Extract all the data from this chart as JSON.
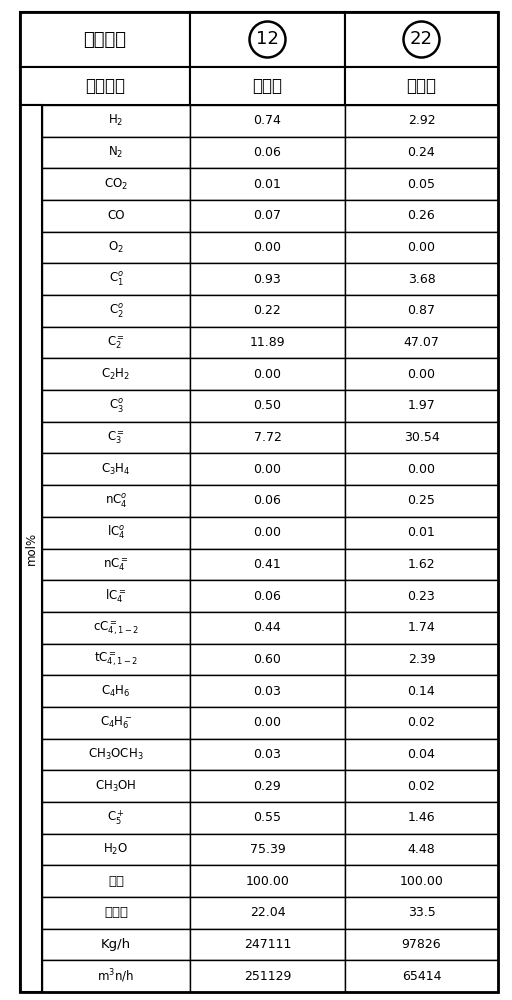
{
  "header_row1_left": "物流编号",
  "header_row1_mid": "12",
  "header_row1_right": "22",
  "header_row2_left": "物流名称",
  "header_row2_mid": "反应气",
  "header_row2_right": "反应气",
  "side_label": "mol%",
  "rows": [
    [
      "H$_2$",
      "0.74",
      "2.92"
    ],
    [
      "N$_2$",
      "0.06",
      "0.24"
    ],
    [
      "CO$_2$",
      "0.01",
      "0.05"
    ],
    [
      "CO",
      "0.07",
      "0.26"
    ],
    [
      "O$_2$",
      "0.00",
      "0.00"
    ],
    [
      "C$_1^o$",
      "0.93",
      "3.68"
    ],
    [
      "C$_2^o$",
      "0.22",
      "0.87"
    ],
    [
      "C$_2^=$",
      "11.89",
      "47.07"
    ],
    [
      "C$_2$H$_2$",
      "0.00",
      "0.00"
    ],
    [
      "C$_3^o$",
      "0.50",
      "1.97"
    ],
    [
      "C$_3^=$",
      "7.72",
      "30.54"
    ],
    [
      "C$_3$H$_4$",
      "0.00",
      "0.00"
    ],
    [
      "nC$_4^o$",
      "0.06",
      "0.25"
    ],
    [
      "lC$_4^o$",
      "0.00",
      "0.01"
    ],
    [
      "nC$_4^=$",
      "0.41",
      "1.62"
    ],
    [
      "lC$_4^=$",
      "0.06",
      "0.23"
    ],
    [
      "cC$_{4,1-2}^=$",
      "0.44",
      "1.74"
    ],
    [
      "tC$_{4,1-2}^=$",
      "0.60",
      "2.39"
    ],
    [
      "C$_4$H$_6$",
      "0.03",
      "0.14"
    ],
    [
      "C$_4$H$_6^-$",
      "0.00",
      "0.02"
    ],
    [
      "CH$_3$OCH$_3$",
      "0.03",
      "0.04"
    ],
    [
      "CH$_3$OH",
      "0.29",
      "0.02"
    ],
    [
      "C$_5^+$",
      "0.55",
      "1.46"
    ],
    [
      "H$_2$O",
      "75.39",
      "4.48"
    ],
    [
      "合计",
      "100.00",
      "100.00"
    ],
    [
      "分子量",
      "22.04",
      "33.5"
    ],
    [
      "Kg/h",
      "247111",
      "97826"
    ],
    [
      "m$^3$n/h",
      "251129",
      "65414"
    ]
  ],
  "bg_color": "#ffffff",
  "line_color": "#000000",
  "text_color": "#000000",
  "fig_width": 5.12,
  "fig_height": 10.0
}
